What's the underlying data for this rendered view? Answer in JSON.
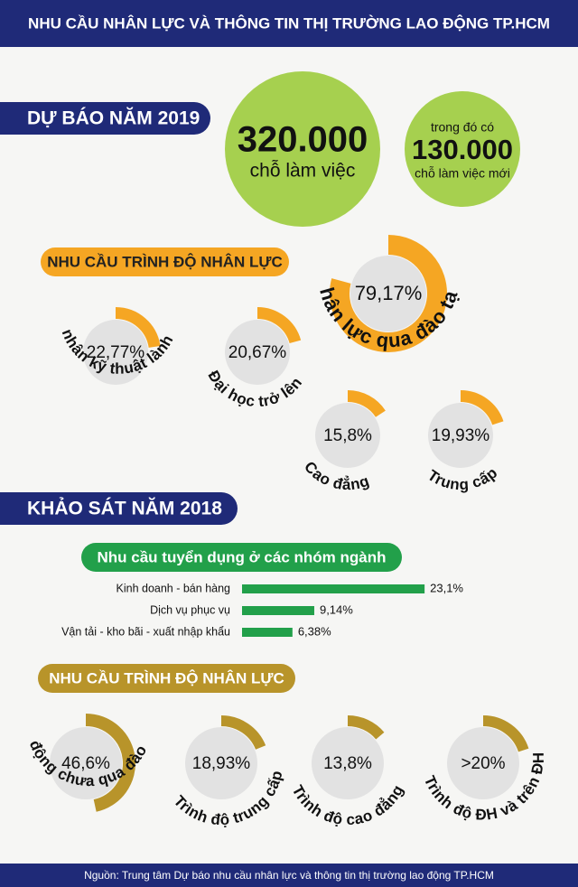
{
  "header": {
    "title": "NHU CẦU NHÂN LỰC VÀ THÔNG TIN THỊ TRƯỜNG LAO ĐỘNG TP.HCM"
  },
  "forecast": {
    "title": "DỰ BÁO NĂM 2019",
    "total": {
      "number": "320.000",
      "label": "chỗ làm việc"
    },
    "new": {
      "prefix": "trong đó có",
      "number": "130.000",
      "label": "chỗ làm việc mới"
    }
  },
  "survey": {
    "title": "KHẢO SÁT NĂM 2018"
  },
  "chart_data": [
    {
      "type": "donut",
      "title": "NHU CẦU TRÌNH ĐỘ NHÂN LỰC",
      "color": "#f5a623",
      "categories": [
        "Công nhân kỹ thuật lành nghề",
        "Đại học trở lên",
        "Nhân lực qua đào tạo",
        "Cao đẳng",
        "Trung cấp"
      ],
      "values": [
        22.77,
        20.67,
        79.17,
        15.8,
        19.93
      ],
      "value_labels": [
        "22,77%",
        "20,67%",
        "79,17%",
        "15,8%",
        "19,93%"
      ]
    },
    {
      "type": "bar",
      "title": "Nhu cầu tuyển dụng ở các nhóm ngành",
      "color": "#22a04a",
      "categories": [
        "Kinh doanh - bán hàng",
        "Dịch vụ phục vụ",
        "Vận tải - kho bãi - xuất nhập khẩu"
      ],
      "values": [
        23.1,
        9.14,
        6.38
      ],
      "value_labels": [
        "23,1%",
        "9,14%",
        "6,38%"
      ]
    },
    {
      "type": "donut",
      "title": "NHU CẦU TRÌNH ĐỘ NHÂN LỰC",
      "color": "#b8942a",
      "categories": [
        "Lao động chưa qua đào tạo",
        "Trình độ trung cấp",
        "Trình độ cao đẳng",
        "Trình độ ĐH và trên ĐH"
      ],
      "values": [
        46.6,
        18.93,
        13.8,
        20
      ],
      "value_labels": [
        "46,6%",
        "18,93%",
        "13,8%",
        ">20%"
      ]
    }
  ],
  "footer": {
    "source": "Nguồn: Trung tâm Dự báo nhu cầu nhân lực và thông tin thị trường lao động TP.HCM"
  }
}
